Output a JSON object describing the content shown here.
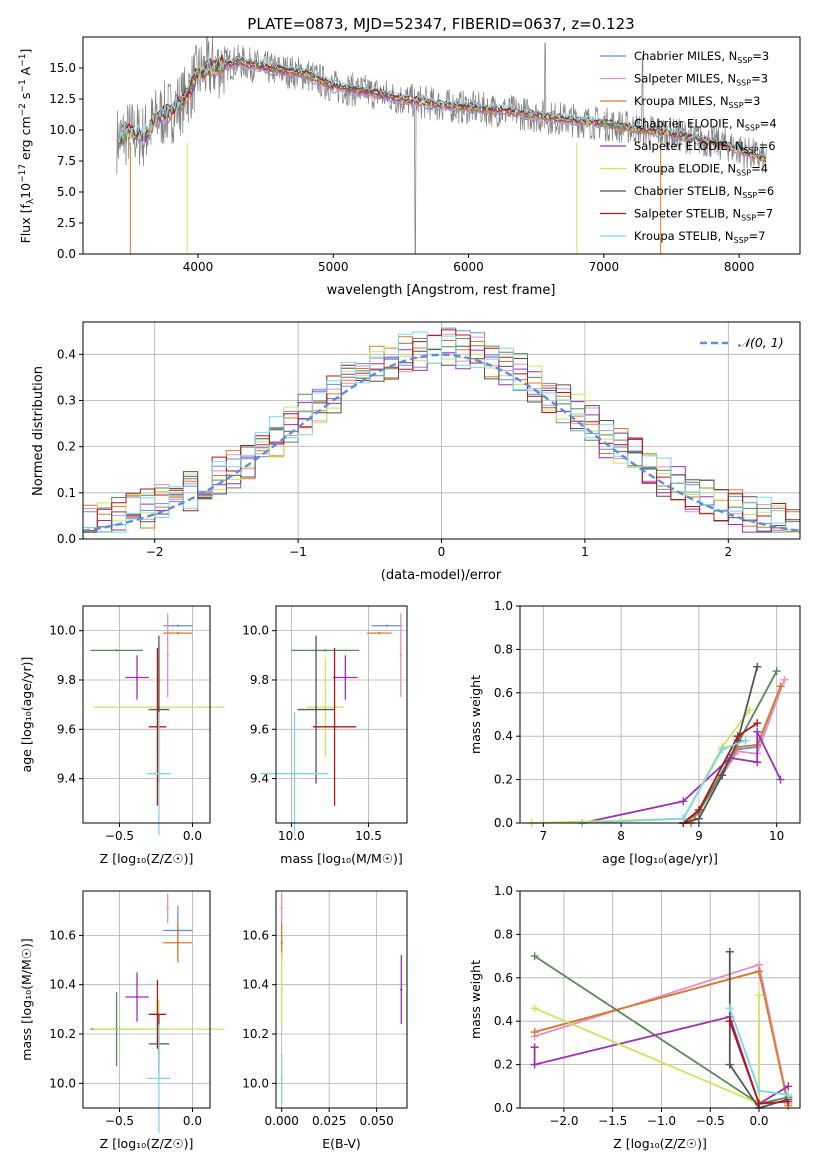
{
  "colors": {
    "chabrier_miles": "#6b8fe0",
    "salpeter_miles": "#e58fc2",
    "kroupa_miles": "#dd7a2a",
    "chabrier_elodie": "#5a8a5a",
    "salpeter_elodie": "#9b33b0",
    "kroupa_elodie": "#cfe35a",
    "chabrier_stelib": "#555555",
    "salpeter_stelib": "#b01818",
    "kroupa_stelib": "#7ed6e6",
    "normal": "#5b8fdc",
    "grey_spectrum": "#808080"
  },
  "chart_data": [
    {
      "id": "spectrum",
      "type": "line",
      "title": "PLATE=0873, MJD=52347, FIBERID=0637, z=0.123",
      "xlabel": "wavelength [Angstrom, rest frame]",
      "ylabel": "Flux [f_λ 10⁻¹⁷ erg cm⁻² s⁻¹ A⁻¹]",
      "xlim": [
        3150,
        8450
      ],
      "ylim": [
        0,
        17.5
      ],
      "xticks": [
        "4000",
        "5000",
        "6000",
        "7000",
        "8000"
      ],
      "yticks": [
        "0.0",
        "2.5",
        "5.0",
        "7.5",
        "10.0",
        "12.5",
        "15.0"
      ],
      "legend": "top-right",
      "legend_entries": [
        "Chabrier MILES, N_SSP=3",
        "Salpeter MILES, N_SSP=3",
        "Kroupa MILES, N_SSP=3",
        "Chabrier ELODIE, N_SSP=4",
        "Salpeter ELODIE, N_SSP=6",
        "Kroupa ELODIE, N_SSP=4",
        "Chabrier STELIB, N_SSP=6",
        "Salpeter STELIB, N_SSP=7",
        "Kroupa STELIB, N_SSP=7"
      ],
      "continuum": [
        [
          3400,
          9.2
        ],
        [
          3500,
          9.8
        ],
        [
          3600,
          9.5
        ],
        [
          3700,
          11.0
        ],
        [
          3800,
          11.5
        ],
        [
          3900,
          12.5
        ],
        [
          4000,
          14.5
        ],
        [
          4100,
          15.0
        ],
        [
          4300,
          15.5
        ],
        [
          4500,
          15.0
        ],
        [
          4800,
          14.5
        ],
        [
          5000,
          13.5
        ],
        [
          5300,
          13.0
        ],
        [
          5500,
          12.5
        ],
        [
          5800,
          12.0
        ],
        [
          6000,
          11.8
        ],
        [
          6300,
          11.5
        ],
        [
          6600,
          11.0
        ],
        [
          7000,
          10.5
        ],
        [
          7300,
          10.0
        ],
        [
          7600,
          9.5
        ],
        [
          7900,
          8.8
        ],
        [
          8200,
          7.6
        ]
      ]
    },
    {
      "id": "residuals",
      "type": "histogram",
      "xlabel": "(data-model)/error",
      "ylabel": "Normed distribution",
      "xlim": [
        -2.5,
        2.5
      ],
      "ylim": [
        0,
        0.47
      ],
      "xticks": [
        "−2",
        "−1",
        "0",
        "1",
        "2"
      ],
      "yticks": [
        "0.0",
        "0.1",
        "0.2",
        "0.3",
        "0.4"
      ],
      "legend": "top-right",
      "legend_entries": [
        "𝒩(0, 1)"
      ]
    },
    {
      "id": "age_vs_Z",
      "type": "scatter",
      "xlabel": "Z [log₁₀(Z/Z☉)]",
      "ylabel": "age  [log₁₀(age/yr)]",
      "xlim": [
        -0.75,
        0.12
      ],
      "ylim": [
        9.22,
        10.1
      ],
      "xticks": [
        -0.5,
        0.0
      ],
      "xticklabels": [
        "−0.5",
        "0.0"
      ],
      "yticks": [
        9.4,
        9.6,
        9.8,
        10.0
      ],
      "yticklabels": [
        "9.4",
        "9.6",
        "9.8",
        "10.0"
      ],
      "points": [
        {
          "c": "chabrier_miles",
          "x": -0.1,
          "y": 10.02,
          "xe": 0.1,
          "ye": 0.0
        },
        {
          "c": "salpeter_miles",
          "x": -0.17,
          "y": 9.9,
          "xe": 0.0,
          "ye": 0.17
        },
        {
          "c": "kroupa_miles",
          "x": -0.1,
          "y": 9.99,
          "xe": 0.1,
          "ye": 0.0
        },
        {
          "c": "chabrier_elodie",
          "x": -0.52,
          "y": 9.92,
          "xe": 0.18,
          "ye": 0.0
        },
        {
          "c": "salpeter_elodie",
          "x": -0.38,
          "y": 9.81,
          "xe": 0.08,
          "ye": 0.09
        },
        {
          "c": "kroupa_elodie",
          "x": -0.23,
          "y": 9.69,
          "xe": 0.45,
          "ye": 0.2
        },
        {
          "c": "chabrier_stelib",
          "x": -0.23,
          "y": 9.68,
          "xe": 0.07,
          "ye": 0.3
        },
        {
          "c": "salpeter_stelib",
          "x": -0.24,
          "y": 9.61,
          "xe": 0.06,
          "ye": 0.32
        },
        {
          "c": "kroupa_stelib",
          "x": -0.23,
          "y": 9.42,
          "xe": 0.08,
          "ye": 0.25
        }
      ]
    },
    {
      "id": "age_vs_mass",
      "type": "scatter",
      "xlabel": "mass [log₁₀(M/M☉)]",
      "ylabel": "",
      "xlim": [
        9.9,
        10.75
      ],
      "ylim": [
        9.22,
        10.1
      ],
      "xticks": [
        10.0,
        10.5
      ],
      "xticklabels": [
        "10.0",
        "10.5"
      ],
      "yticks": [
        9.4,
        9.6,
        9.8,
        10.0
      ],
      "yticklabels": [
        "9.4",
        "9.6",
        "9.8",
        "10.0"
      ],
      "points": [
        {
          "c": "chabrier_miles",
          "x": 10.62,
          "y": 10.02,
          "xe": 0.1,
          "ye": 0.0
        },
        {
          "c": "salpeter_miles",
          "x": 10.71,
          "y": 9.9,
          "xe": 0.0,
          "ye": 0.17
        },
        {
          "c": "kroupa_miles",
          "x": 10.57,
          "y": 9.99,
          "xe": 0.08,
          "ye": 0.0
        },
        {
          "c": "chabrier_elodie",
          "x": 10.22,
          "y": 9.92,
          "xe": 0.22,
          "ye": 0.0
        },
        {
          "c": "salpeter_elodie",
          "x": 10.35,
          "y": 9.81,
          "xe": 0.08,
          "ye": 0.09
        },
        {
          "c": "kroupa_elodie",
          "x": 10.22,
          "y": 9.69,
          "xe": 0.12,
          "ye": 0.2
        },
        {
          "c": "chabrier_stelib",
          "x": 10.16,
          "y": 9.68,
          "xe": 0.12,
          "ye": 0.3
        },
        {
          "c": "salpeter_stelib",
          "x": 10.28,
          "y": 9.61,
          "xe": 0.14,
          "ye": 0.32
        },
        {
          "c": "kroupa_stelib",
          "x": 10.02,
          "y": 9.42,
          "xe": 0.22,
          "ye": 0.25
        }
      ]
    },
    {
      "id": "mass_weight_vs_age",
      "type": "line",
      "xlabel": "age  [log₁₀(age/yr)]",
      "ylabel": "mass weight",
      "xlim": [
        6.7,
        10.3
      ],
      "ylim": [
        0,
        1
      ],
      "xticks": [
        7,
        8,
        9,
        10
      ],
      "xticklabels": [
        "7",
        "8",
        "9",
        "10"
      ],
      "yticks": [
        0,
        0.2,
        0.4,
        0.6,
        0.8,
        1.0
      ],
      "yticklabels": [
        "0.0",
        "0.2",
        "0.4",
        "0.6",
        "0.8",
        "1.0"
      ],
      "series": [
        {
          "c": "chabrier_miles",
          "pts": [
            [
              8.9,
              0.0
            ],
            [
              9.5,
              0.34
            ],
            [
              9.75,
              0.35
            ],
            [
              10.05,
              0.63
            ]
          ]
        },
        {
          "c": "salpeter_miles",
          "pts": [
            [
              8.9,
              0.0
            ],
            [
              9.5,
              0.33
            ],
            [
              9.75,
              0.32
            ],
            [
              10.1,
              0.66
            ]
          ]
        },
        {
          "c": "kroupa_miles",
          "pts": [
            [
              8.9,
              0.0
            ],
            [
              9.5,
              0.35
            ],
            [
              9.75,
              0.36
            ],
            [
              10.05,
              0.63
            ]
          ]
        },
        {
          "c": "chabrier_elodie",
          "pts": [
            [
              8.8,
              0.0
            ],
            [
              9.0,
              0.05
            ],
            [
              9.4,
              0.3
            ],
            [
              10.0,
              0.7
            ]
          ]
        },
        {
          "c": "salpeter_elodie",
          "pts": [
            [
              7.5,
              0.0
            ],
            [
              8.8,
              0.1
            ],
            [
              9.4,
              0.3
            ],
            [
              9.75,
              0.28
            ],
            [
              9.75,
              0.42
            ],
            [
              10.05,
              0.2
            ]
          ]
        },
        {
          "c": "kroupa_elodie",
          "pts": [
            [
              6.85,
              0.0
            ],
            [
              8.8,
              0.02
            ],
            [
              9.3,
              0.35
            ],
            [
              9.65,
              0.52
            ]
          ]
        },
        {
          "c": "chabrier_stelib",
          "pts": [
            [
              8.8,
              0.0
            ],
            [
              9.0,
              0.02
            ],
            [
              9.3,
              0.22
            ],
            [
              9.5,
              0.38
            ],
            [
              9.75,
              0.72
            ]
          ]
        },
        {
          "c": "salpeter_stelib",
          "pts": [
            [
              8.8,
              0.0
            ],
            [
              9.0,
              0.06
            ],
            [
              9.5,
              0.4
            ],
            [
              9.75,
              0.46
            ]
          ]
        },
        {
          "c": "kroupa_stelib",
          "pts": [
            [
              7.5,
              0.0
            ],
            [
              8.8,
              0.02
            ],
            [
              9.3,
              0.34
            ],
            [
              9.6,
              0.38
            ]
          ]
        }
      ]
    },
    {
      "id": "mass_vs_Z",
      "type": "scatter",
      "xlabel": "Z [log₁₀(Z/Z☉)]",
      "ylabel": "mass [log₁₀(M/M☉)]",
      "xlim": [
        -0.75,
        0.12
      ],
      "ylim": [
        9.9,
        10.78
      ],
      "xticks": [
        -0.5,
        0.0
      ],
      "xticklabels": [
        "−0.5",
        "0.0"
      ],
      "yticks": [
        10.0,
        10.2,
        10.4,
        10.6
      ],
      "yticklabels": [
        "10.0",
        "10.2",
        "10.4",
        "10.6"
      ],
      "points": [
        {
          "c": "chabrier_miles",
          "x": -0.1,
          "y": 10.62,
          "xe": 0.1,
          "ye": 0.1
        },
        {
          "c": "salpeter_miles",
          "x": -0.17,
          "y": 10.71,
          "xe": 0.0,
          "ye": 0.06
        },
        {
          "c": "kroupa_miles",
          "x": -0.1,
          "y": 10.57,
          "xe": 0.1,
          "ye": 0.08
        },
        {
          "c": "chabrier_elodie",
          "x": -0.52,
          "y": 10.22,
          "xe": 0.18,
          "ye": 0.15
        },
        {
          "c": "salpeter_elodie",
          "x": -0.38,
          "y": 10.35,
          "xe": 0.08,
          "ye": 0.1
        },
        {
          "c": "kroupa_elodie",
          "x": -0.23,
          "y": 10.22,
          "xe": 0.45,
          "ye": 0.12
        },
        {
          "c": "chabrier_stelib",
          "x": -0.23,
          "y": 10.16,
          "xe": 0.07,
          "ye": 0.12
        },
        {
          "c": "salpeter_stelib",
          "x": -0.24,
          "y": 10.28,
          "xe": 0.06,
          "ye": 0.14
        },
        {
          "c": "kroupa_stelib",
          "x": -0.23,
          "y": 10.02,
          "xe": 0.08,
          "ye": 0.22
        }
      ]
    },
    {
      "id": "mass_vs_ebv",
      "type": "scatter",
      "xlabel": "E(B-V)",
      "ylabel": "",
      "xlim": [
        -0.003,
        0.066
      ],
      "ylim": [
        9.9,
        10.78
      ],
      "xticks": [
        0.0,
        0.025,
        0.05
      ],
      "xticklabels": [
        "0.000",
        "0.025",
        "0.050"
      ],
      "yticks": [
        10.0,
        10.2,
        10.4,
        10.6
      ],
      "yticklabels": [
        "10.0",
        "10.2",
        "10.4",
        "10.6"
      ],
      "points": [
        {
          "c": "salpeter_miles",
          "x": 0.0,
          "y": 10.71,
          "xe": 0.0,
          "ye": 0.06
        },
        {
          "c": "kroupa_miles",
          "x": 0.0,
          "y": 10.57,
          "xe": 0.0,
          "ye": 0.08
        },
        {
          "c": "kroupa_elodie",
          "x": 0.0,
          "y": 10.38,
          "xe": 0.0,
          "ye": 0.15
        },
        {
          "c": "kroupa_stelib",
          "x": 0.0,
          "y": 10.02,
          "xe": 0.0,
          "ye": 0.1
        },
        {
          "c": "salpeter_elodie",
          "x": 0.063,
          "y": 10.38,
          "xe": 0.0,
          "ye": 0.14
        }
      ]
    },
    {
      "id": "mass_weight_vs_Z",
      "type": "line",
      "xlabel": "Z [log₁₀(Z/Z☉)]",
      "ylabel": "mass weight",
      "xlim": [
        -2.45,
        0.42
      ],
      "ylim": [
        0,
        1
      ],
      "xticks": [
        -2.0,
        -1.5,
        -1.0,
        -0.5,
        0.0
      ],
      "xticklabels": [
        "−2.0",
        "−1.5",
        "−1.0",
        "−0.5",
        "0.0"
      ],
      "yticks": [
        0,
        0.2,
        0.4,
        0.6,
        0.8,
        1.0
      ],
      "yticklabels": [
        "0.0",
        "0.2",
        "0.4",
        "0.6",
        "0.8",
        "1.0"
      ],
      "series": [
        {
          "c": "chabrier_miles",
          "pts": [
            [
              -2.3,
              0.35
            ],
            [
              0.0,
              0.63
            ],
            [
              0.3,
              0.02
            ]
          ]
        },
        {
          "c": "salpeter_miles",
          "pts": [
            [
              -2.3,
              0.33
            ],
            [
              0.0,
              0.66
            ],
            [
              0.3,
              0.02
            ]
          ]
        },
        {
          "c": "kroupa_miles",
          "pts": [
            [
              -2.3,
              0.35
            ],
            [
              0.0,
              0.63
            ],
            [
              0.3,
              0.01
            ]
          ]
        },
        {
          "c": "chabrier_elodie",
          "pts": [
            [
              -2.3,
              0.7
            ],
            [
              0.0,
              0.02
            ],
            [
              0.3,
              0.05
            ]
          ]
        },
        {
          "c": "salpeter_elodie",
          "pts": [
            [
              -2.3,
              0.28
            ],
            [
              -2.3,
              0.2
            ],
            [
              -0.3,
              0.42
            ],
            [
              0.0,
              0.02
            ],
            [
              0.3,
              0.1
            ]
          ]
        },
        {
          "c": "kroupa_elodie",
          "pts": [
            [
              -2.3,
              0.46
            ],
            [
              0.0,
              0.02
            ],
            [
              0.0,
              0.52
            ]
          ]
        },
        {
          "c": "chabrier_stelib",
          "pts": [
            [
              -0.3,
              0.72
            ],
            [
              -0.3,
              0.2
            ],
            [
              0.0,
              0.0
            ],
            [
              0.3,
              0.04
            ]
          ]
        },
        {
          "c": "salpeter_stelib",
          "pts": [
            [
              -0.3,
              0.4
            ],
            [
              0.0,
              0.02
            ],
            [
              0.3,
              0.03
            ]
          ]
        },
        {
          "c": "kroupa_stelib",
          "pts": [
            [
              -0.3,
              0.46
            ],
            [
              0.0,
              0.08
            ],
            [
              0.3,
              0.06
            ]
          ]
        }
      ]
    }
  ]
}
